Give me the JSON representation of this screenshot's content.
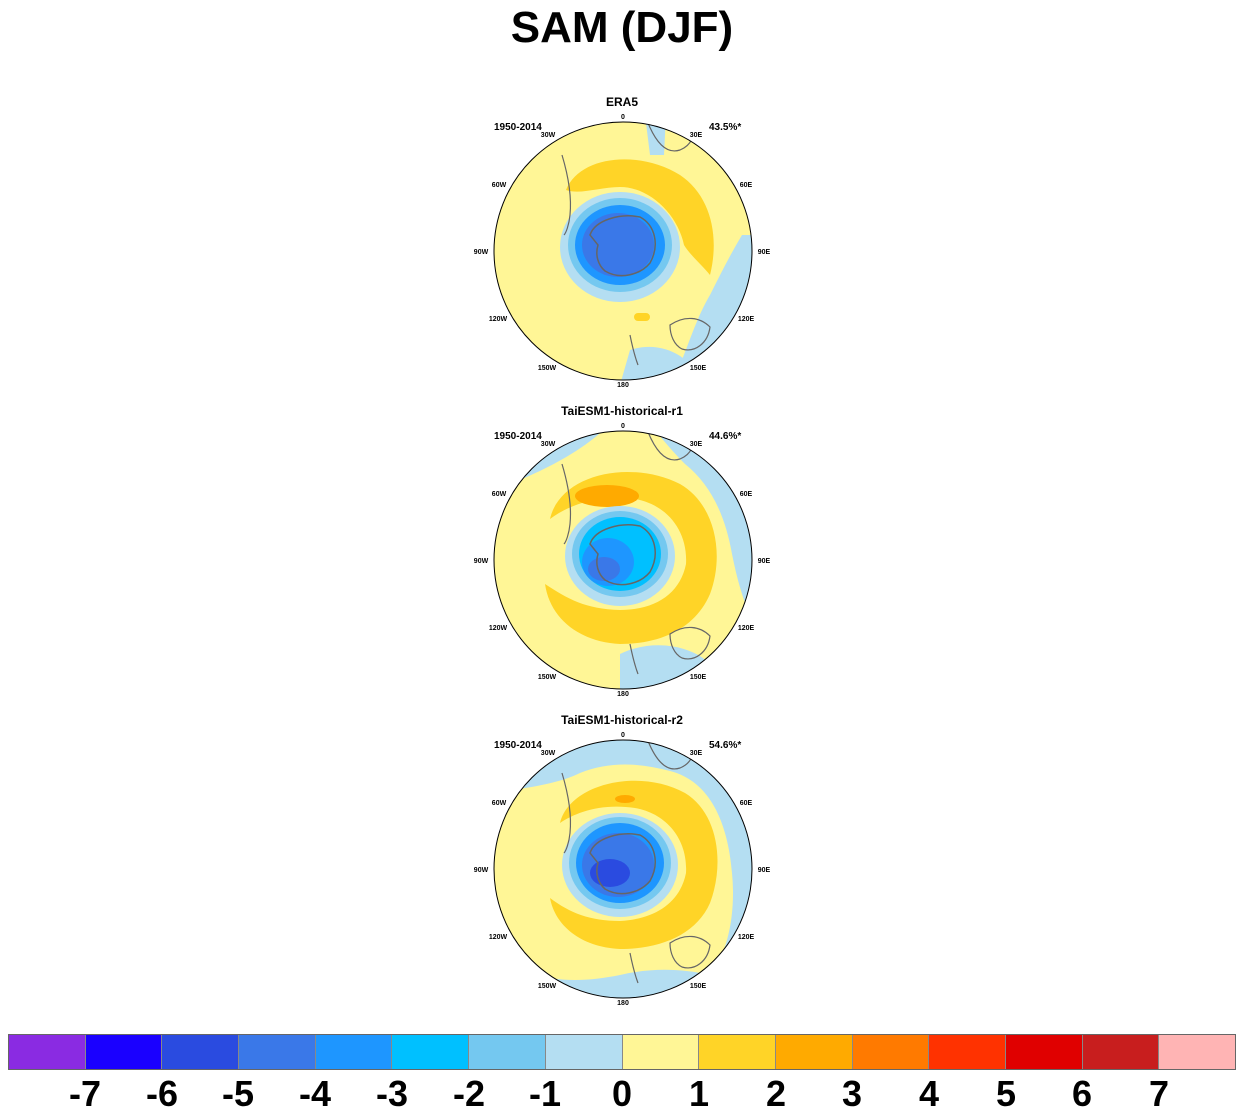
{
  "title": "SAM (DJF)",
  "panels": [
    {
      "title": "ERA5",
      "period": "1950-2014",
      "variance": "43.5%*"
    },
    {
      "title": "TaiESM1-historical-r1",
      "period": "1950-2014",
      "variance": "44.6%*"
    },
    {
      "title": "TaiESM1-historical-r2",
      "period": "1950-2014",
      "variance": "54.6%*"
    }
  ],
  "longitude_labels": [
    "0",
    "30E",
    "60E",
    "90E",
    "120E",
    "150E",
    "180",
    "150W",
    "120W",
    "90W",
    "60W",
    "30W"
  ],
  "colorbar": {
    "colors": [
      "#8a2be2",
      "#1a00ff",
      "#2a4be0",
      "#3a78e8",
      "#1e96ff",
      "#00c0ff",
      "#74c8f0",
      "#b4def2",
      "#fff696",
      "#ffd427",
      "#ffaa00",
      "#ff7a00",
      "#ff3200",
      "#e00000",
      "#c81e1e",
      "#ffb4b4"
    ],
    "labels": [
      "-7",
      "-6",
      "-5",
      "-4",
      "-3",
      "-2",
      "-1",
      "0",
      "1",
      "2",
      "3",
      "4",
      "5",
      "6",
      "7"
    ]
  }
}
